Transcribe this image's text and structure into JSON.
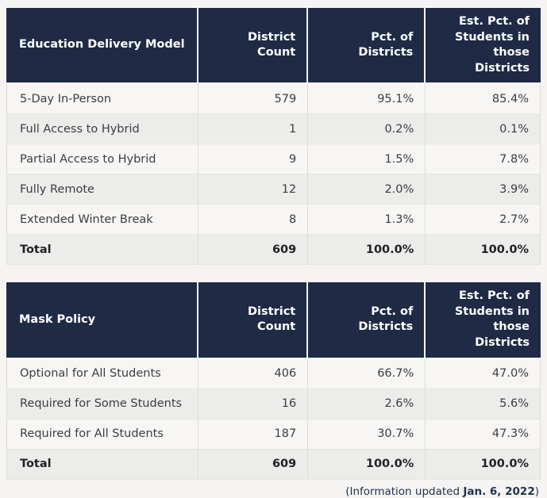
{
  "page": {
    "background_color": "#f5f4f3",
    "header_bg_color": "#1f2b45",
    "header_text_color": "#ffffff"
  },
  "tables": [
    {
      "id": "education-delivery",
      "headers": [
        "Education Delivery Model",
        "District Count",
        "Pct. of Districts",
        "Est. Pct. of Students in those Districts"
      ],
      "rows": [
        {
          "label": "5-Day In-Person",
          "count": "579",
          "pct": "95.1%",
          "students": "85.4%",
          "total": false
        },
        {
          "label": "Full Access to Hybrid",
          "count": "1",
          "pct": "0.2%",
          "students": "0.1%",
          "total": false
        },
        {
          "label": "Partial Access to Hybrid",
          "count": "9",
          "pct": "1.5%",
          "students": "7.8%",
          "total": false
        },
        {
          "label": "Fully Remote",
          "count": "12",
          "pct": "2.0%",
          "students": "3.9%",
          "total": false
        },
        {
          "label": "Extended Winter Break",
          "count": "8",
          "pct": "1.3%",
          "students": "2.7%",
          "total": false
        },
        {
          "label": "Total",
          "count": "609",
          "pct": "100.0%",
          "students": "100.0%",
          "total": true
        }
      ]
    },
    {
      "id": "mask-policy",
      "headers": [
        "Mask Policy",
        "District Count",
        "Pct. of Districts",
        "Est. Pct. of Students in those Districts"
      ],
      "rows": [
        {
          "label": "Optional for All Students",
          "count": "406",
          "pct": "66.7%",
          "students": "47.0%",
          "total": false
        },
        {
          "label": "Required for Some Students",
          "count": "16",
          "pct": "2.6%",
          "students": "5.6%",
          "total": false
        },
        {
          "label": "Required for All Students",
          "count": "187",
          "pct": "30.7%",
          "students": "47.3%",
          "total": false
        },
        {
          "label": "Total",
          "count": "609",
          "pct": "100.0%",
          "students": "100.0%",
          "total": true
        }
      ]
    }
  ],
  "footer": {
    "prefix": "(Information updated ",
    "date": "Jan. 6, 2022",
    "suffix": ")"
  }
}
